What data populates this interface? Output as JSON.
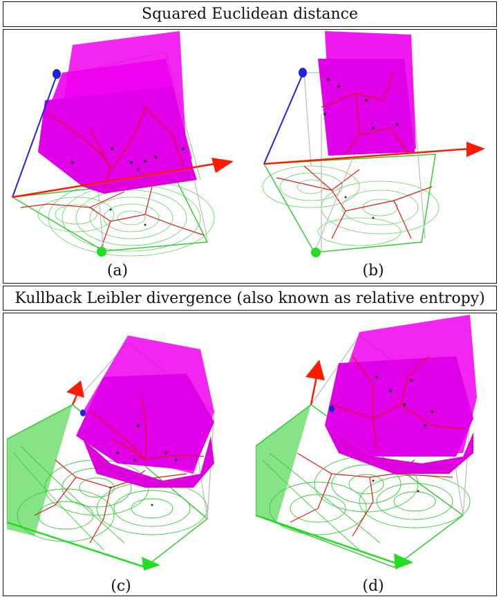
{
  "figure": {
    "top_title": "Squared Euclidean distance",
    "bottom_title": "Kullback Leibler divergence (also known as relative entropy)",
    "captions": [
      "(a)",
      "(b)",
      "(c)",
      "(d)"
    ]
  },
  "colors": {
    "surface": "#ee00ee",
    "voronoi": "#e01818",
    "contour": "#33cc33",
    "axis_red": "#ff1a00",
    "axis_blue": "#2222dd",
    "axis_green": "#22dd22",
    "frame": "#bbbbbb"
  },
  "panels": [
    {
      "id": "a",
      "divergence": "squared-euclidean"
    },
    {
      "id": "b",
      "divergence": "squared-euclidean"
    },
    {
      "id": "c",
      "divergence": "kullback-leibler"
    },
    {
      "id": "d",
      "divergence": "kullback-leibler"
    }
  ]
}
